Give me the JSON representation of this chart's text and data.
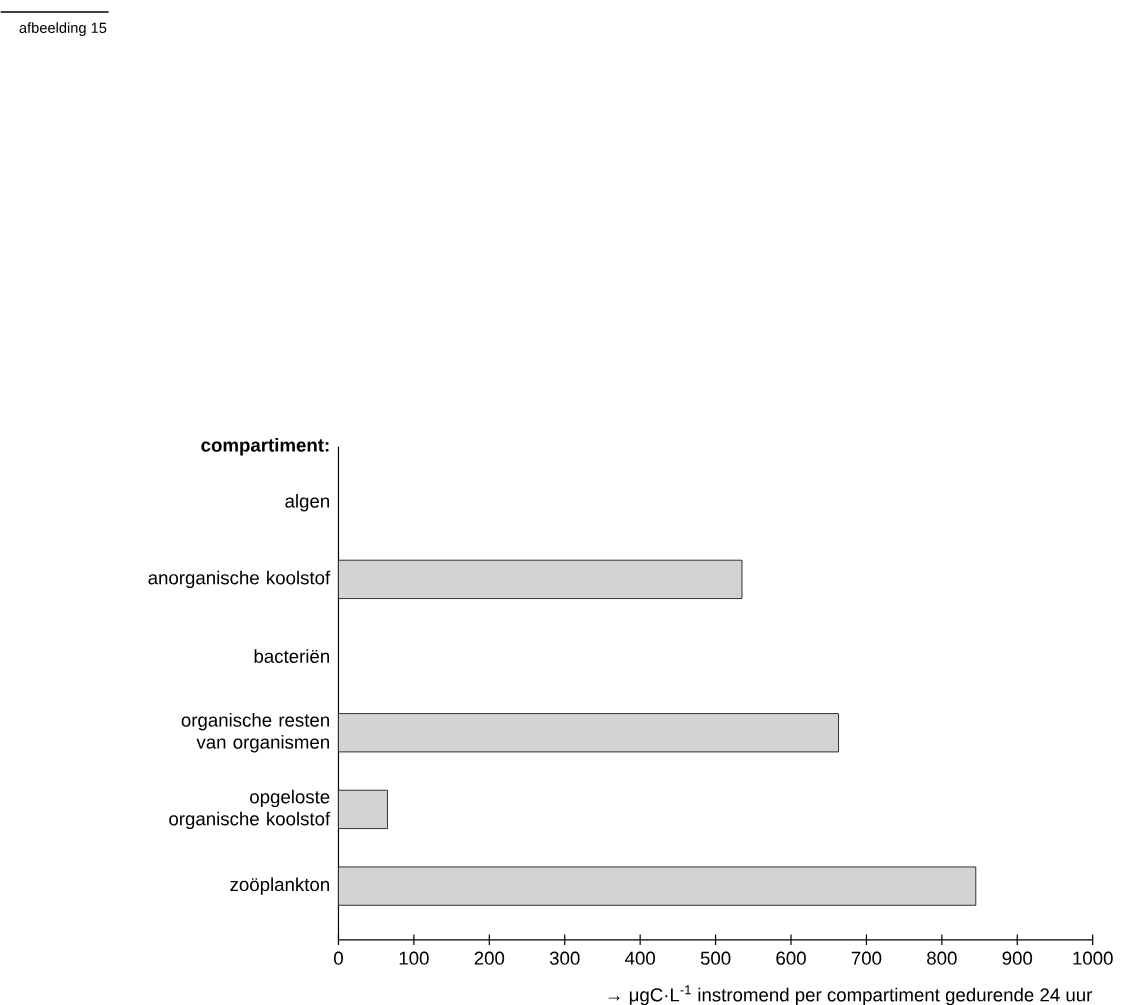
{
  "chart_data": {
    "type": "bar",
    "orientation": "horizontal",
    "ylabel": "compartiment:",
    "xlabel": "→ μgC·L$^{-1}$ instromend per compartiment gedurende 24 uur",
    "categories": [
      "algen",
      "anorganische koolstof",
      "bacteriën",
      "organische resten van organismen",
      "opgeloste organische koolstof",
      "zoöplankton"
    ],
    "values": [
      null,
      535,
      null,
      663,
      65,
      845
    ],
    "color": "#d1d3d4",
    "xlim": [
      0,
      1000
    ],
    "xticks": [
      0,
      100,
      200,
      300,
      400,
      500,
      600,
      700,
      800,
      900,
      1000
    ],
    "grid": false,
    "annotations": [
      "afbeelding 15"
    ]
  }
}
